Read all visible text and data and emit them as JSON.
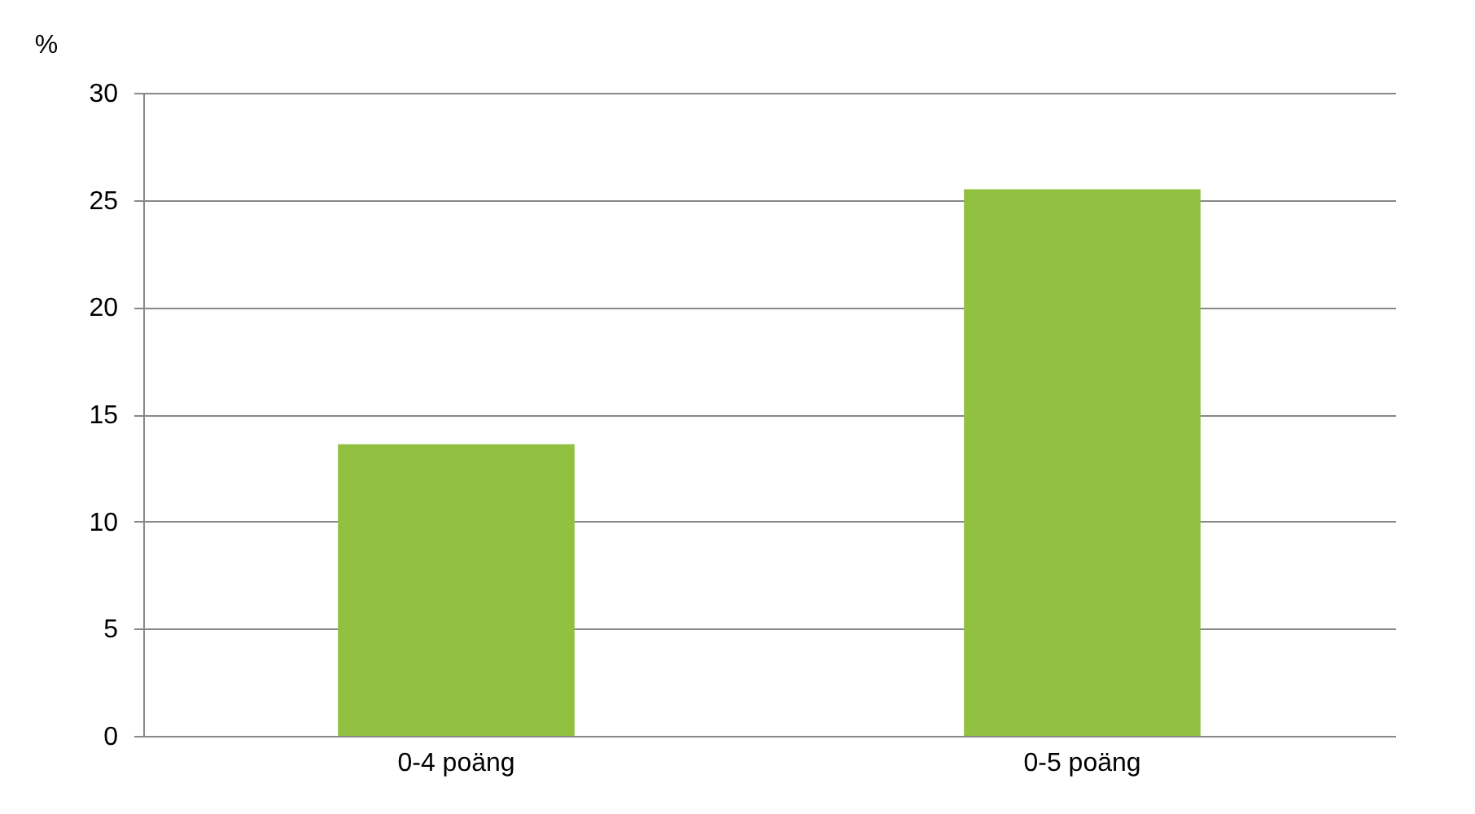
{
  "chart_data": {
    "type": "bar",
    "ylabel": "%",
    "categories": [
      "0-4 poäng",
      "0-5 poäng"
    ],
    "series": [
      {
        "color": "#92c040",
        "values": [
          13.6,
          25.5
        ]
      }
    ],
    "ylim": [
      0,
      30
    ],
    "yticks": [
      0,
      5,
      10,
      15,
      20,
      25,
      30
    ],
    "grid": "y"
  }
}
